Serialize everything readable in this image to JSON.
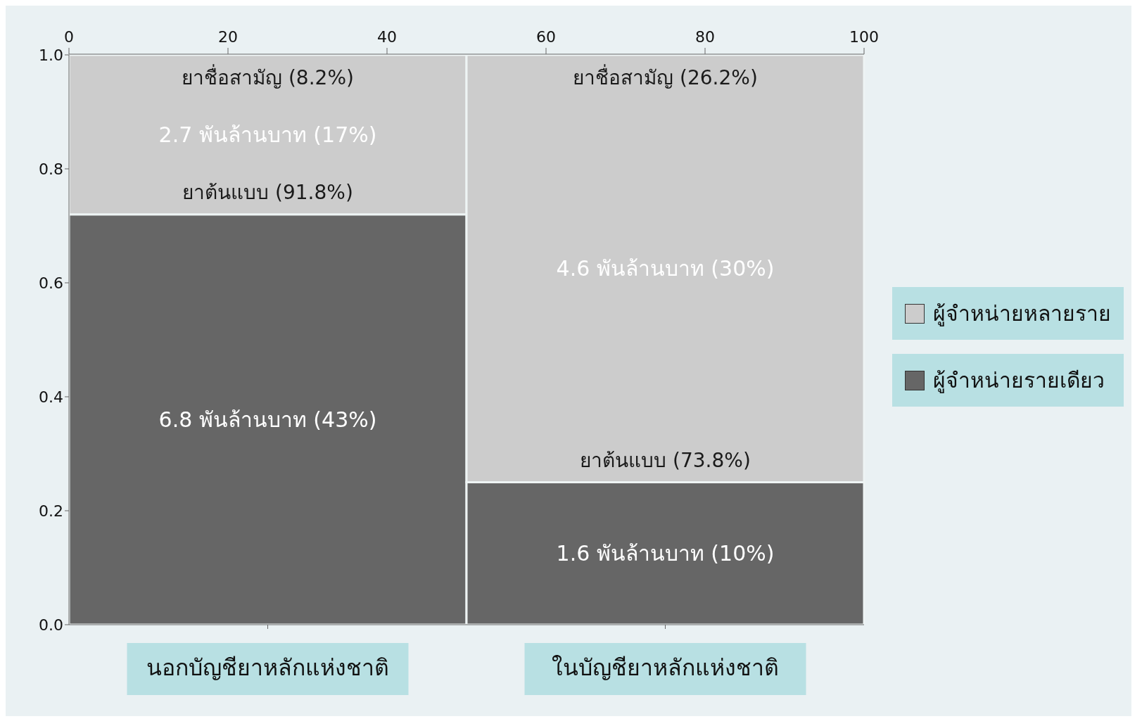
{
  "chart_data": {
    "type": "bar",
    "stacked": true,
    "categories": [
      "นอกบัญชียาหลักแห่งชาติ",
      "ในบัญชียาหลักแห่งชาติ"
    ],
    "series": [
      {
        "name": "ผู้จำหน่ายรายเดียว",
        "color": "#666666",
        "values": [
          0.72,
          0.25
        ]
      },
      {
        "name": "ผู้จำหน่ายหลายราย",
        "color": "#cccccc",
        "values": [
          0.28,
          0.75
        ]
      }
    ],
    "ylim": [
      0,
      1
    ],
    "yticks": [
      {
        "value": 0,
        "label": "0.0"
      },
      0.2,
      0.4,
      0.6,
      0.8,
      {
        "value": 1,
        "label": "1.0"
      }
    ],
    "x2lim": [
      0,
      100
    ],
    "x2ticks": [
      0,
      20,
      40,
      60,
      80,
      100
    ],
    "legend": "right",
    "annotations": [
      "6.8 พันล้านบาท (43%)",
      "1.6 พันล้านบาท (10%)",
      "2.7 พันล้านบาท (17%)",
      "4.6 พันล้านบาท (30%)",
      {
        "text": "ยาชื่อสามัญ (8.2%)",
        "x": "นอกบัญชียาหลักแห่งชาติ",
        "y": 1
      },
      {
        "text": "ยาต้นแบบ (91.8%)",
        "x": "นอกบัญชียาหลักแห่งชาติ",
        "y": 0.72
      },
      {
        "text": "ยาชื่อสามัญ (26.2%)",
        "x": "ในบัญชียาหลักแห่งชาติ",
        "y": 1
      },
      {
        "text": "ยาต้นแบบ (73.8%)",
        "x": "ในบัญชียาหลักแห่งชาติ",
        "y": 0.25
      }
    ]
  }
}
